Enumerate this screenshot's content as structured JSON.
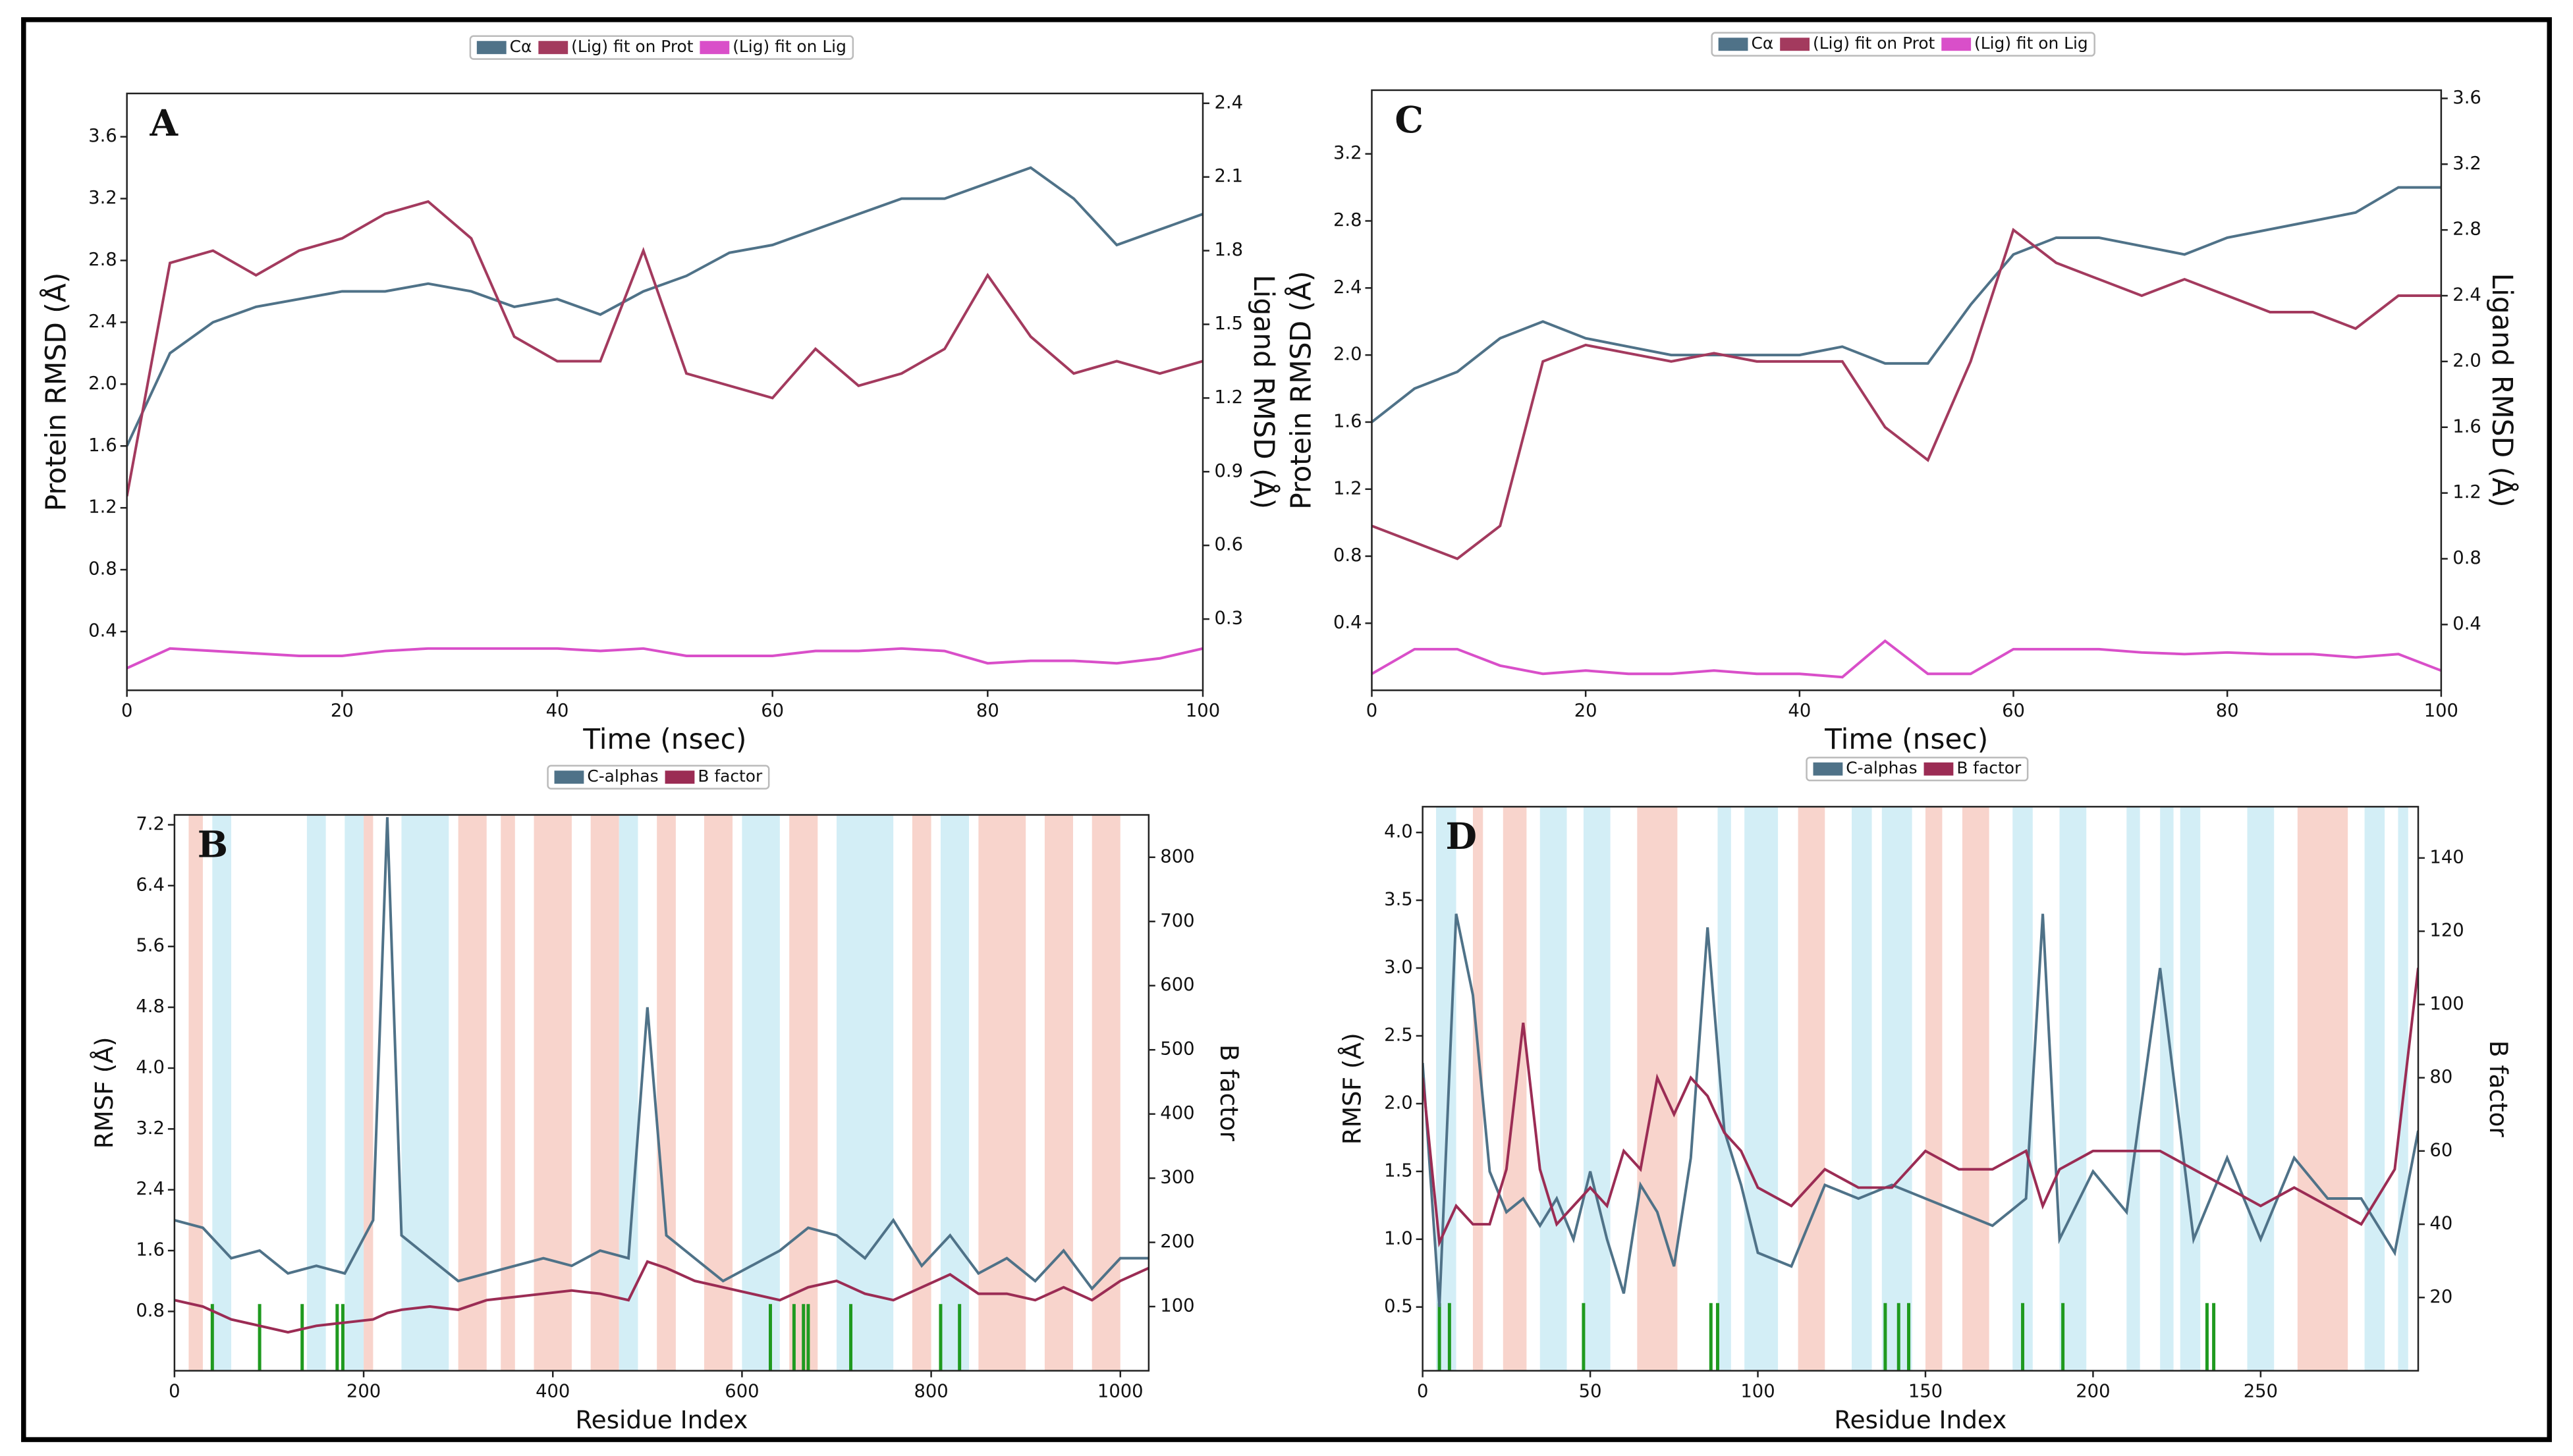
{
  "chart_data": [
    {
      "type": "line",
      "label": "A",
      "xlabel": "Time (nsec)",
      "ylabel": "Protein RMSD (Å)",
      "y2label": "Ligand RMSD (Å)",
      "xlim": [
        0,
        100
      ],
      "xticks": [
        0,
        20,
        40,
        60,
        80,
        100
      ],
      "ylim": [
        0.02,
        3.88
      ],
      "yticks": [
        0.4,
        0.8,
        1.2,
        1.6,
        {
          "value": 2,
          "label": "2.0"
        },
        2.4,
        2.8,
        3.2,
        3.6
      ],
      "y2lim": [
        0.01,
        2.44
      ],
      "y2ticks": [
        0.3,
        0.6,
        0.9,
        1.2,
        1.5,
        1.8,
        2.1,
        2.4
      ],
      "x": [
        0,
        4,
        8,
        12,
        16,
        20,
        24,
        28,
        32,
        36,
        40,
        44,
        48,
        52,
        56,
        60,
        64,
        68,
        72,
        76,
        80,
        84,
        88,
        92,
        96,
        100
      ],
      "series": [
        {
          "name": "Cα",
          "color": "#4f7288",
          "axis": "y",
          "values": [
            1.6,
            2.2,
            2.4,
            2.5,
            2.55,
            2.6,
            2.6,
            2.65,
            2.6,
            2.5,
            2.55,
            2.45,
            2.6,
            2.7,
            2.85,
            2.9,
            3.0,
            3.1,
            3.2,
            3.2,
            3.3,
            3.4,
            3.2,
            2.9,
            3.0,
            3.1
          ]
        },
        {
          "name": "(Lig) fit on Prot",
          "color": "#a33a5e",
          "axis": "y2",
          "values": [
            0.8,
            1.75,
            1.8,
            1.7,
            1.8,
            1.85,
            1.95,
            2.0,
            1.85,
            1.45,
            1.35,
            1.35,
            1.8,
            1.3,
            1.25,
            1.2,
            1.4,
            1.25,
            1.3,
            1.4,
            1.7,
            1.45,
            1.3,
            1.35,
            1.3,
            1.35
          ]
        },
        {
          "name": "(Lig) fit on Lig",
          "color": "#d94fc9",
          "axis": "y2",
          "values": [
            0.1,
            0.18,
            0.17,
            0.16,
            0.15,
            0.15,
            0.17,
            0.18,
            0.18,
            0.18,
            0.18,
            0.17,
            0.18,
            0.15,
            0.15,
            0.15,
            0.17,
            0.17,
            0.18,
            0.17,
            0.12,
            0.13,
            0.13,
            0.12,
            0.14,
            0.18
          ]
        }
      ]
    },
    {
      "type": "line",
      "label": "B",
      "xlabel": "Residue Index",
      "ylabel": "RMSF (Å)",
      "y2label": "B factor",
      "xlim": [
        0,
        1030
      ],
      "xticks": [
        0,
        200,
        400,
        600,
        800,
        1000
      ],
      "ylim": [
        0.02,
        7.33
      ],
      "yticks": [
        0.8,
        1.6,
        2.4,
        3.2,
        {
          "value": 4,
          "label": "4.0"
        },
        4.8,
        5.6,
        6.4,
        7.2
      ],
      "y2lim": [
        0,
        866
      ],
      "y2ticks": [
        100,
        200,
        300,
        400,
        500,
        600,
        700,
        800
      ],
      "helix_color": "#f8d4cc",
      "strand_color": "#d3eef6",
      "contact_color": "#1f9a1f",
      "helix_ranges": [
        [
          15,
          30
        ],
        [
          200,
          210
        ],
        [
          300,
          330
        ],
        [
          345,
          360
        ],
        [
          380,
          420
        ],
        [
          440,
          470
        ],
        [
          510,
          530
        ],
        [
          560,
          590
        ],
        [
          650,
          680
        ],
        [
          780,
          800
        ],
        [
          850,
          900
        ],
        [
          920,
          950
        ],
        [
          970,
          1000
        ]
      ],
      "strand_ranges": [
        [
          40,
          60
        ],
        [
          140,
          160
        ],
        [
          180,
          200
        ],
        [
          240,
          290
        ],
        [
          470,
          490
        ],
        [
          600,
          640
        ],
        [
          700,
          760
        ],
        [
          810,
          840
        ]
      ],
      "contacts": [
        40,
        90,
        135,
        172,
        178,
        630,
        655,
        665,
        670,
        715,
        810,
        830
      ],
      "x": [
        0,
        30,
        60,
        90,
        120,
        150,
        180,
        210,
        225,
        240,
        270,
        300,
        330,
        360,
        390,
        420,
        450,
        480,
        500,
        520,
        550,
        580,
        610,
        640,
        670,
        700,
        730,
        760,
        790,
        820,
        850,
        880,
        910,
        940,
        970,
        1000,
        1030
      ],
      "series": [
        {
          "name": "C-alphas",
          "color": "#4f7288",
          "axis": "y",
          "values": [
            2.0,
            1.9,
            1.5,
            1.6,
            1.3,
            1.4,
            1.3,
            2.0,
            7.3,
            1.8,
            1.5,
            1.2,
            1.3,
            1.4,
            1.5,
            1.4,
            1.6,
            1.5,
            4.8,
            1.8,
            1.5,
            1.2,
            1.4,
            1.6,
            1.9,
            1.8,
            1.5,
            2.0,
            1.4,
            1.8,
            1.3,
            1.5,
            1.2,
            1.6,
            1.1,
            1.5,
            1.5
          ]
        },
        {
          "name": "B factor",
          "color": "#9b2c54",
          "axis": "y2",
          "values": [
            110,
            100,
            80,
            70,
            60,
            70,
            75,
            80,
            90,
            95,
            100,
            95,
            110,
            115,
            120,
            125,
            120,
            110,
            170,
            160,
            140,
            130,
            120,
            110,
            130,
            140,
            120,
            110,
            130,
            150,
            120,
            120,
            110,
            130,
            110,
            140,
            160
          ]
        }
      ]
    },
    {
      "type": "line",
      "label": "C",
      "xlabel": "Time (nsec)",
      "ylabel": "Protein RMSD (Å)",
      "y2label": "Ligand RMSD (Å)",
      "xlim": [
        0,
        100
      ],
      "xticks": [
        0,
        20,
        40,
        60,
        80,
        100
      ],
      "ylim": [
        0,
        3.58
      ],
      "yticks": [
        0.4,
        0.8,
        1.2,
        1.6,
        {
          "value": 2,
          "label": "2.0"
        },
        2.4,
        2.8,
        3.2
      ],
      "y2lim": [
        0,
        3.65
      ],
      "y2ticks": [
        0.4,
        0.8,
        1.2,
        1.6,
        {
          "value": 2,
          "label": "2.0"
        },
        2.4,
        2.8,
        3.2,
        3.6
      ],
      "x": [
        0,
        4,
        8,
        12,
        16,
        20,
        24,
        28,
        32,
        36,
        40,
        44,
        48,
        52,
        56,
        60,
        64,
        68,
        72,
        76,
        80,
        84,
        88,
        92,
        96,
        100
      ],
      "series": [
        {
          "name": "Cα",
          "color": "#4f7288",
          "axis": "y",
          "values": [
            1.6,
            1.8,
            1.9,
            2.1,
            2.2,
            2.1,
            2.05,
            2.0,
            2.0,
            2.0,
            2.0,
            2.05,
            1.95,
            1.95,
            2.3,
            2.6,
            2.7,
            2.7,
            2.65,
            2.6,
            2.7,
            2.75,
            2.8,
            2.85,
            3.0,
            3.0
          ]
        },
        {
          "name": "(Lig) fit on Prot",
          "color": "#a33a5e",
          "axis": "y2",
          "values": [
            1.0,
            0.9,
            0.8,
            1.0,
            2.0,
            2.1,
            2.05,
            2.0,
            2.05,
            2.0,
            2.0,
            2.0,
            1.6,
            1.4,
            2.0,
            2.8,
            2.6,
            2.5,
            2.4,
            2.5,
            2.4,
            2.3,
            2.3,
            2.2,
            2.4,
            2.4
          ]
        },
        {
          "name": "(Lig) fit on Lig",
          "color": "#d94fc9",
          "axis": "y2",
          "values": [
            0.1,
            0.25,
            0.25,
            0.15,
            0.1,
            0.12,
            0.1,
            0.1,
            0.12,
            0.1,
            0.1,
            0.08,
            0.3,
            0.1,
            0.1,
            0.25,
            0.25,
            0.25,
            0.23,
            0.22,
            0.23,
            0.22,
            0.22,
            0.2,
            0.22,
            0.12
          ]
        }
      ]
    },
    {
      "type": "line",
      "label": "D",
      "xlabel": "Residue Index",
      "ylabel": "RMSF (Å)",
      "y2label": "B factor",
      "xlim": [
        0,
        297
      ],
      "xticks": [
        0,
        50,
        100,
        150,
        200,
        250
      ],
      "ylim": [
        0.03,
        4.19
      ],
      "yticks": [
        0.5,
        {
          "value": 1,
          "label": "1.0"
        },
        1.5,
        {
          "value": 2,
          "label": "2.0"
        },
        2.5,
        {
          "value": 3,
          "label": "3.0"
        },
        3.5,
        {
          "value": 4,
          "label": "4.0"
        }
      ],
      "y2lim": [
        0,
        154
      ],
      "y2ticks": [
        20,
        40,
        60,
        80,
        100,
        120,
        140
      ],
      "helix_color": "#f8d4cc",
      "strand_color": "#d3eef6",
      "contact_color": "#1f9a1f",
      "helix_ranges": [
        [
          15,
          18
        ],
        [
          24,
          31
        ],
        [
          64,
          76
        ],
        [
          112,
          120
        ],
        [
          150,
          155
        ],
        [
          161,
          169
        ],
        [
          261,
          276
        ]
      ],
      "strand_ranges": [
        [
          4,
          10
        ],
        [
          35,
          43
        ],
        [
          48,
          56
        ],
        [
          88,
          92
        ],
        [
          96,
          106
        ],
        [
          128,
          134
        ],
        [
          137,
          146
        ],
        [
          176,
          182
        ],
        [
          190,
          198
        ],
        [
          210,
          214
        ],
        [
          220,
          224
        ],
        [
          226,
          232
        ],
        [
          246,
          254
        ],
        [
          281,
          287
        ],
        [
          291,
          294
        ]
      ],
      "contacts": [
        5,
        8,
        48,
        86,
        88,
        138,
        142,
        145,
        179,
        191,
        234,
        236
      ],
      "x": [
        0,
        5,
        10,
        15,
        20,
        25,
        30,
        35,
        40,
        45,
        50,
        55,
        60,
        65,
        70,
        75,
        80,
        85,
        90,
        95,
        100,
        110,
        120,
        130,
        140,
        150,
        160,
        170,
        180,
        185,
        190,
        200,
        210,
        220,
        230,
        240,
        250,
        260,
        270,
        280,
        290,
        297
      ],
      "series": [
        {
          "name": "C-alphas",
          "color": "#4f7288",
          "axis": "y",
          "values": [
            2.3,
            0.5,
            3.4,
            2.8,
            1.5,
            1.2,
            1.3,
            1.1,
            1.3,
            1.0,
            1.5,
            1.0,
            0.6,
            1.4,
            1.2,
            0.8,
            1.6,
            3.3,
            1.8,
            1.4,
            0.9,
            0.8,
            1.4,
            1.3,
            1.4,
            1.3,
            1.2,
            1.1,
            1.3,
            3.4,
            1.0,
            1.5,
            1.2,
            3.0,
            1.0,
            1.6,
            1.0,
            1.6,
            1.3,
            1.3,
            0.9,
            1.8
          ]
        },
        {
          "name": "B factor",
          "color": "#9b2c54",
          "axis": "y2",
          "values": [
            80,
            35,
            45,
            40,
            40,
            55,
            95,
            55,
            40,
            45,
            50,
            45,
            60,
            55,
            80,
            70,
            80,
            75,
            65,
            60,
            50,
            45,
            55,
            50,
            50,
            60,
            55,
            55,
            60,
            45,
            55,
            60,
            60,
            60,
            55,
            50,
            45,
            50,
            45,
            40,
            55,
            110
          ]
        }
      ]
    }
  ]
}
